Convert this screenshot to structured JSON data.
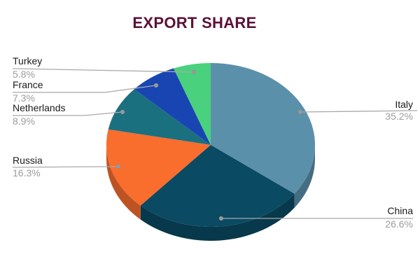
{
  "chart_data": {
    "type": "pie",
    "title": "EXPORT SHARE",
    "legend_position": "none",
    "effect": "3d",
    "start_angle_deg": 90,
    "direction": "clockwise",
    "slices": [
      {
        "label": "Italy",
        "value": 35.2,
        "pct_label": "35.2%",
        "color": "#5b90ab"
      },
      {
        "label": "China",
        "value": 26.6,
        "pct_label": "26.6%",
        "color": "#0a4a63"
      },
      {
        "label": "Russia",
        "value": 16.3,
        "pct_label": "16.3%",
        "color": "#f96d2d"
      },
      {
        "label": "Netherlands",
        "value": 8.9,
        "pct_label": "8.9%",
        "color": "#1b7080"
      },
      {
        "label": "France",
        "value": 7.3,
        "pct_label": "7.3%",
        "color": "#1945b2"
      },
      {
        "label": "Turkey",
        "value": 5.8,
        "pct_label": "5.8%",
        "color": "#4ad17e"
      }
    ],
    "colors": {
      "title": "#5c1138",
      "label_text": "#1a1a1a",
      "pct_text": "#9c9c9c",
      "leader_line": "#a9a9a9",
      "background": "#ffffff"
    }
  }
}
